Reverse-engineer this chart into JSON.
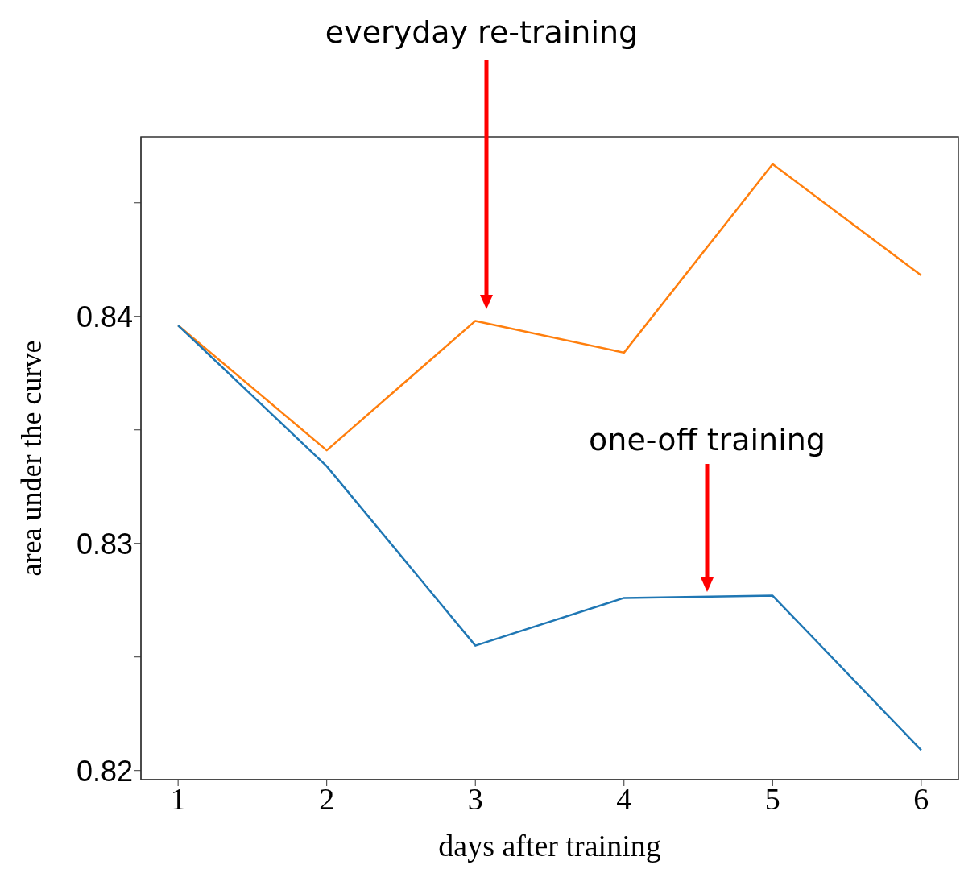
{
  "chart_data": {
    "type": "line",
    "xlabel": "days after training",
    "ylabel": "area under the curve",
    "x": [
      1,
      2,
      3,
      4,
      5,
      6
    ],
    "series": [
      {
        "color": "#ff7f0e",
        "values": [
          0.8396,
          0.8341,
          0.8398,
          0.8384,
          0.8467,
          0.8418
        ]
      },
      {
        "color": "#1f77b4",
        "values": [
          0.8396,
          0.8334,
          0.8255,
          0.8276,
          0.8277,
          0.8209
        ]
      }
    ],
    "xlim": [
      0.75,
      6.25
    ],
    "xticks": [
      1,
      2,
      3,
      4,
      5,
      6
    ],
    "ylim": [
      0.8196,
      0.8479
    ],
    "yticks": [
      0.82,
      {
        "value": 0.825,
        "label": null
      },
      0.83,
      {
        "value": 0.835,
        "label": null
      },
      0.84,
      {
        "value": 0.845,
        "label": null
      }
    ],
    "annotations": [
      "everyday re-training",
      "one-off training"
    ],
    "grid": false,
    "legend": false,
    "marker": "none",
    "line_style": "solid"
  }
}
